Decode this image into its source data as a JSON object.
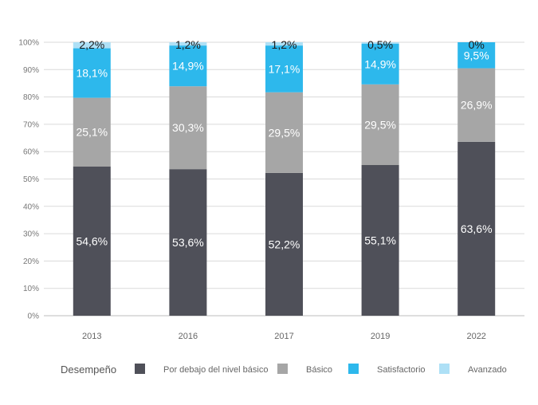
{
  "chart_data": {
    "type": "bar",
    "stacked": true,
    "categories": [
      "2013",
      "2016",
      "2017",
      "2019",
      "2022"
    ],
    "series": [
      {
        "name": "Por debajo del nivel básico",
        "color": "#4f5059",
        "values": [
          54.6,
          53.6,
          52.2,
          55.1,
          63.6
        ],
        "labels": [
          "54,6%",
          "53,6%",
          "52,2%",
          "55,1%",
          "63,6%"
        ]
      },
      {
        "name": "Básico",
        "color": "#a6a6a6",
        "values": [
          25.1,
          30.3,
          29.5,
          29.5,
          26.9
        ],
        "labels": [
          "25,1%",
          "30,3%",
          "29,5%",
          "29,5%",
          "26,9%"
        ]
      },
      {
        "name": "Satisfactorio",
        "color": "#2db8ec",
        "values": [
          18.1,
          14.9,
          17.1,
          14.9,
          9.5
        ],
        "labels": [
          "18,1%",
          "14,9%",
          "17,1%",
          "14,9%",
          "9,5%"
        ]
      },
      {
        "name": "Avanzado",
        "color": "#aee0f6",
        "values": [
          2.2,
          1.2,
          1.2,
          0.5,
          0
        ],
        "labels": [
          "2,2%",
          "1,2%",
          "1,2%",
          "0,5%",
          "0%"
        ]
      }
    ],
    "ylim": [
      0,
      100
    ],
    "yticks": [
      "0%",
      "10%",
      "20%",
      "30%",
      "40%",
      "50%",
      "60%",
      "70%",
      "80%",
      "90%",
      "100%"
    ],
    "grid": true,
    "legend": {
      "title": "Desempeño",
      "position": "bottom"
    }
  }
}
